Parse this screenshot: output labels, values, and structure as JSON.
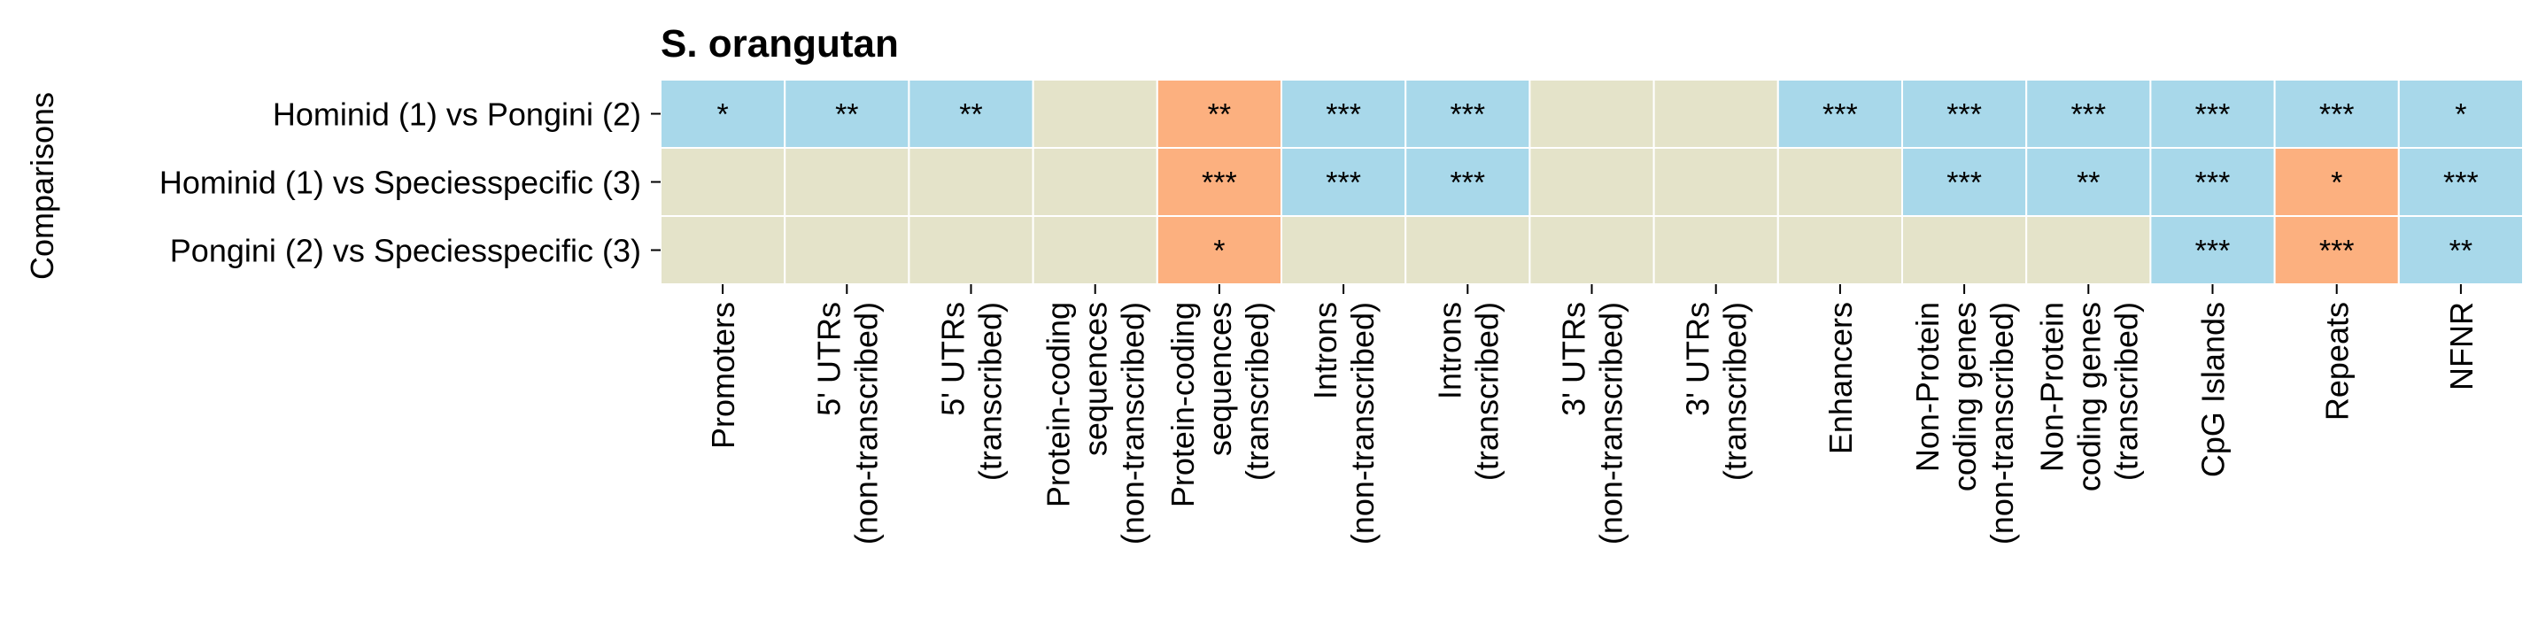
{
  "chart_data": {
    "type": "heatmap",
    "title": "S. orangutan",
    "ylabel": "Comparisons",
    "xlabel": "",
    "rows": [
      "Hominid (1) vs Pongini (2)",
      "Hominid (1) vs Speciesspecific (3)",
      "Pongini (2) vs Speciesspecific (3)"
    ],
    "columns": [
      [
        "Promoters"
      ],
      [
        "5' UTRs",
        "(non-transcribed)"
      ],
      [
        "5' UTRs",
        "(transcribed)"
      ],
      [
        "Protein-coding",
        "sequences",
        "(non-transcribed)"
      ],
      [
        "Protein-coding",
        "sequences",
        "(transcribed)"
      ],
      [
        "Introns",
        "(non-transcribed)"
      ],
      [
        "Introns",
        "(transcribed)"
      ],
      [
        "3' UTRs",
        "(non-transcribed)"
      ],
      [
        "3' UTRs",
        "(transcribed)"
      ],
      [
        "Enhancers"
      ],
      [
        "Non-Protein",
        "coding genes",
        "(non-transcribed)"
      ],
      [
        "Non-Protein",
        "coding genes",
        "(transcribed)"
      ],
      [
        "CpG Islands"
      ],
      [
        "Repeats"
      ],
      [
        "NFNR"
      ]
    ],
    "cells": [
      [
        {
          "category": "blue",
          "label": "*"
        },
        {
          "category": "blue",
          "label": "**"
        },
        {
          "category": "blue",
          "label": "**"
        },
        {
          "category": "neutral",
          "label": ""
        },
        {
          "category": "orange",
          "label": "**"
        },
        {
          "category": "blue",
          "label": "***"
        },
        {
          "category": "blue",
          "label": "***"
        },
        {
          "category": "neutral",
          "label": ""
        },
        {
          "category": "neutral",
          "label": ""
        },
        {
          "category": "blue",
          "label": "***"
        },
        {
          "category": "blue",
          "label": "***"
        },
        {
          "category": "blue",
          "label": "***"
        },
        {
          "category": "blue",
          "label": "***"
        },
        {
          "category": "blue",
          "label": "***"
        },
        {
          "category": "blue",
          "label": "*"
        }
      ],
      [
        {
          "category": "neutral",
          "label": ""
        },
        {
          "category": "neutral",
          "label": ""
        },
        {
          "category": "neutral",
          "label": ""
        },
        {
          "category": "neutral",
          "label": ""
        },
        {
          "category": "orange",
          "label": "***"
        },
        {
          "category": "blue",
          "label": "***"
        },
        {
          "category": "blue",
          "label": "***"
        },
        {
          "category": "neutral",
          "label": ""
        },
        {
          "category": "neutral",
          "label": ""
        },
        {
          "category": "neutral",
          "label": ""
        },
        {
          "category": "blue",
          "label": "***"
        },
        {
          "category": "blue",
          "label": "**"
        },
        {
          "category": "blue",
          "label": "***"
        },
        {
          "category": "orange",
          "label": "*"
        },
        {
          "category": "blue",
          "label": "***"
        }
      ],
      [
        {
          "category": "neutral",
          "label": ""
        },
        {
          "category": "neutral",
          "label": ""
        },
        {
          "category": "neutral",
          "label": ""
        },
        {
          "category": "neutral",
          "label": ""
        },
        {
          "category": "orange",
          "label": "*"
        },
        {
          "category": "neutral",
          "label": ""
        },
        {
          "category": "neutral",
          "label": ""
        },
        {
          "category": "neutral",
          "label": ""
        },
        {
          "category": "neutral",
          "label": ""
        },
        {
          "category": "neutral",
          "label": ""
        },
        {
          "category": "neutral",
          "label": ""
        },
        {
          "category": "neutral",
          "label": ""
        },
        {
          "category": "blue",
          "label": "***"
        },
        {
          "category": "orange",
          "label": "***"
        },
        {
          "category": "blue",
          "label": "**"
        }
      ]
    ],
    "colors": {
      "blue": "#a8d8ea",
      "orange": "#fcb07f",
      "neutral": "#e4e3c9",
      "cell_border": "#ffffff"
    },
    "grid": false,
    "legend": "none"
  }
}
